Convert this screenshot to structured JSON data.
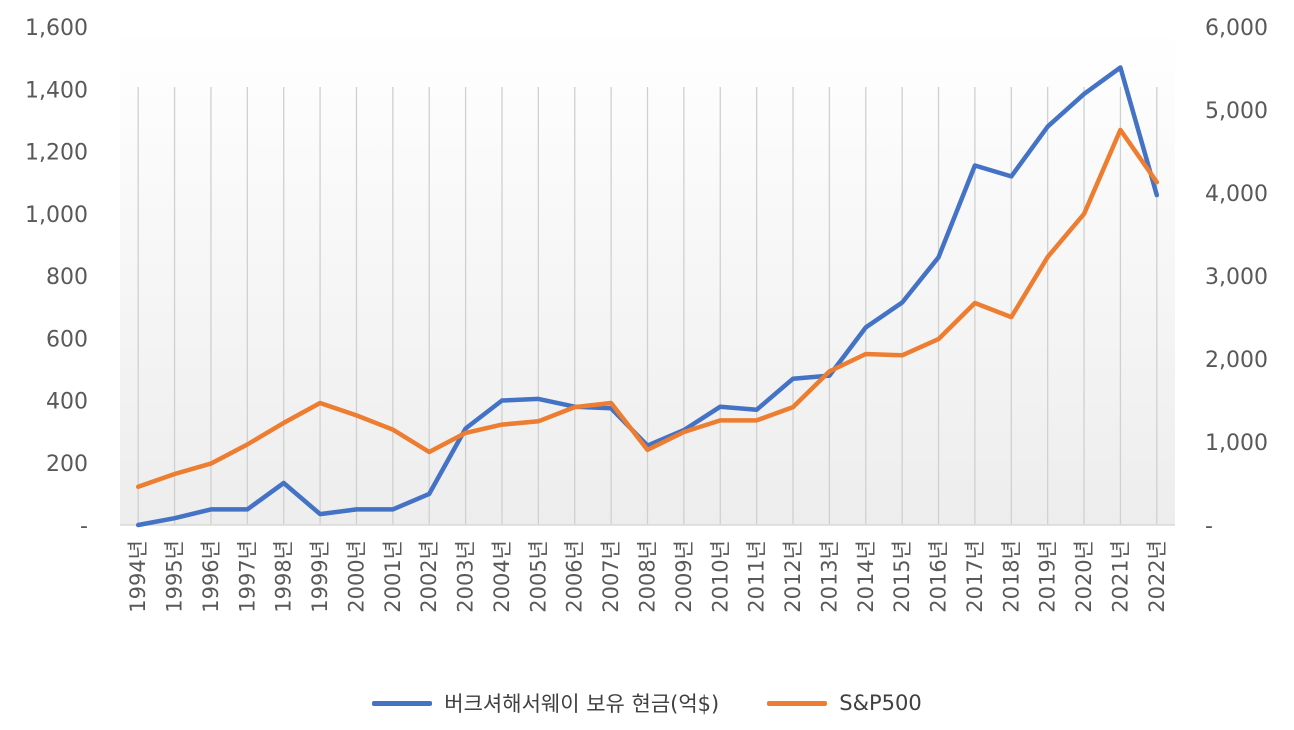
{
  "chart_data": {
    "type": "line",
    "categories": [
      "1994년",
      "1995년",
      "1996년",
      "1997년",
      "1998년",
      "1999년",
      "2000년",
      "2001년",
      "2002년",
      "2003년",
      "2004년",
      "2005년",
      "2006년",
      "2007년",
      "2008년",
      "2009년",
      "2010년",
      "2011년",
      "2012년",
      "2013년",
      "2014년",
      "2015년",
      "2016년",
      "2017년",
      "2018년",
      "2019년",
      "2020년",
      "2021년",
      "2022년"
    ],
    "series": [
      {
        "name": "버크셔해서웨이 보유 현금(억$)",
        "axis": "left",
        "color": "#4472C4",
        "values": [
          0,
          22,
          50,
          50,
          135,
          35,
          50,
          50,
          100,
          310,
          400,
          405,
          380,
          375,
          255,
          305,
          380,
          370,
          470,
          480,
          635,
          715,
          860,
          1155,
          1120,
          1280,
          1385,
          1470,
          1060
        ]
      },
      {
        "name": "S&P500",
        "axis": "right",
        "color": "#ED7D31",
        "values": [
          460,
          615,
          740,
          970,
          1230,
          1470,
          1320,
          1150,
          880,
          1110,
          1210,
          1250,
          1420,
          1470,
          905,
          1120,
          1260,
          1260,
          1420,
          1850,
          2060,
          2045,
          2240,
          2675,
          2505,
          3230,
          3750,
          4760,
          4130
        ]
      }
    ],
    "y_left": {
      "min": 0,
      "max": 1600,
      "ticks": [
        "-",
        "200",
        "400",
        "600",
        "800",
        "1,000",
        "1,200",
        "1,400",
        "1,600"
      ]
    },
    "y_right": {
      "min": 0,
      "max": 6000,
      "ticks": [
        "-",
        "1,000",
        "2,000",
        "3,000",
        "4,000",
        "5,000",
        "6,000"
      ]
    },
    "grid": "vertical",
    "legend_position": "bottom"
  }
}
